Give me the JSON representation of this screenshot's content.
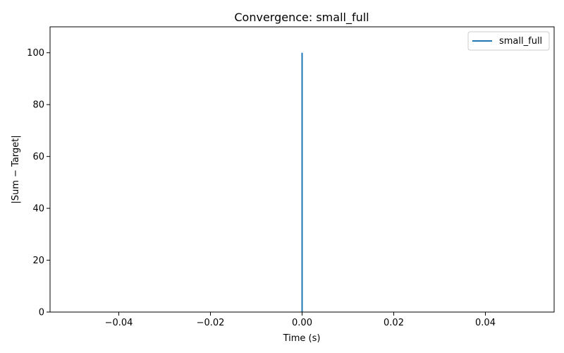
{
  "chart_data": {
    "type": "line",
    "title": "Convergence: small_full",
    "xlabel": "Time (s)",
    "ylabel": "|Sum − Target|",
    "xlim": [
      -0.055,
      0.055
    ],
    "ylim": [
      0,
      110
    ],
    "x_ticks": [
      -0.04,
      -0.02,
      0.0,
      0.02,
      0.04
    ],
    "x_tick_labels": [
      "−0.04",
      "−0.02",
      "0.00",
      "0.02",
      "0.04"
    ],
    "y_ticks": [
      0,
      20,
      40,
      60,
      80,
      100
    ],
    "y_tick_labels": [
      "0",
      "20",
      "40",
      "60",
      "80",
      "100"
    ],
    "grid": false,
    "legend_position": "top-right",
    "series": [
      {
        "name": "small_full",
        "color": "#1f77b4",
        "x": [
          0.0,
          0.0
        ],
        "y": [
          100,
          0
        ]
      }
    ]
  }
}
